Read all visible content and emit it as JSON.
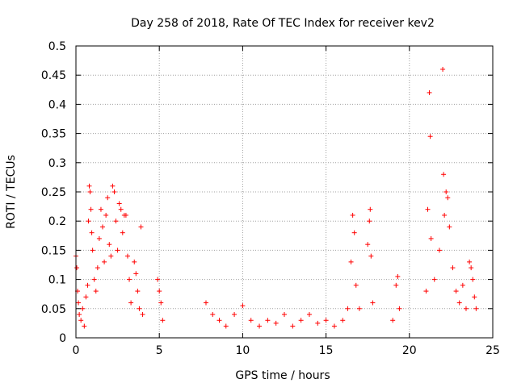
{
  "chart_data": {
    "type": "scatter",
    "title": "Day 258 of 2018, Rate Of TEC Index for receiver kev2",
    "xlabel": "GPS time / hours",
    "ylabel": "ROTI / TECUs",
    "xlim": [
      0,
      25
    ],
    "ylim": [
      0,
      0.5
    ],
    "x_ticks": [
      0,
      5,
      10,
      15,
      20,
      25
    ],
    "y_ticks": [
      0,
      0.05,
      0.1,
      0.15,
      0.2,
      0.25,
      0.3,
      0.35,
      0.4,
      0.45,
      0.5
    ],
    "x_tick_labels": [
      "0",
      "5",
      "10",
      "15",
      "20",
      "25"
    ],
    "y_tick_labels": [
      "0",
      "0.05",
      "0.1",
      "0.15",
      "0.2",
      "0.25",
      "0.3",
      "0.35",
      "0.4",
      "0.45",
      "0.5"
    ],
    "grid": true,
    "marker": "+",
    "color": "#ff0000",
    "series": [
      {
        "name": "ROTI",
        "points": [
          [
            0.0,
            0.14
          ],
          [
            0.05,
            0.12
          ],
          [
            0.1,
            0.08
          ],
          [
            0.15,
            0.06
          ],
          [
            0.2,
            0.04
          ],
          [
            0.3,
            0.03
          ],
          [
            0.4,
            0.05
          ],
          [
            0.5,
            0.02
          ],
          [
            0.6,
            0.07
          ],
          [
            0.7,
            0.09
          ],
          [
            0.75,
            0.2
          ],
          [
            0.8,
            0.26
          ],
          [
            0.85,
            0.25
          ],
          [
            0.9,
            0.22
          ],
          [
            0.95,
            0.18
          ],
          [
            1.0,
            0.15
          ],
          [
            1.1,
            0.1
          ],
          [
            1.2,
            0.08
          ],
          [
            1.3,
            0.12
          ],
          [
            1.4,
            0.17
          ],
          [
            1.5,
            0.22
          ],
          [
            1.6,
            0.19
          ],
          [
            1.7,
            0.13
          ],
          [
            1.8,
            0.21
          ],
          [
            1.9,
            0.24
          ],
          [
            2.0,
            0.16
          ],
          [
            2.1,
            0.14
          ],
          [
            2.2,
            0.26
          ],
          [
            2.3,
            0.25
          ],
          [
            2.4,
            0.2
          ],
          [
            2.5,
            0.15
          ],
          [
            2.6,
            0.23
          ],
          [
            2.7,
            0.22
          ],
          [
            2.8,
            0.18
          ],
          [
            2.9,
            0.21
          ],
          [
            3.0,
            0.21
          ],
          [
            3.1,
            0.14
          ],
          [
            3.2,
            0.1
          ],
          [
            3.3,
            0.06
          ],
          [
            3.5,
            0.13
          ],
          [
            3.6,
            0.11
          ],
          [
            3.7,
            0.08
          ],
          [
            3.8,
            0.05
          ],
          [
            3.9,
            0.19
          ],
          [
            4.0,
            0.04
          ],
          [
            4.9,
            0.1
          ],
          [
            5.0,
            0.08
          ],
          [
            5.1,
            0.06
          ],
          [
            5.2,
            0.03
          ],
          [
            7.8,
            0.06
          ],
          [
            8.2,
            0.04
          ],
          [
            8.6,
            0.03
          ],
          [
            9.0,
            0.02
          ],
          [
            9.5,
            0.04
          ],
          [
            10.0,
            0.055
          ],
          [
            10.5,
            0.03
          ],
          [
            11.0,
            0.02
          ],
          [
            11.5,
            0.03
          ],
          [
            12.0,
            0.025
          ],
          [
            12.5,
            0.04
          ],
          [
            13.0,
            0.02
          ],
          [
            13.5,
            0.03
          ],
          [
            14.0,
            0.04
          ],
          [
            14.5,
            0.025
          ],
          [
            15.0,
            0.03
          ],
          [
            15.5,
            0.02
          ],
          [
            16.0,
            0.03
          ],
          [
            16.3,
            0.05
          ],
          [
            16.5,
            0.13
          ],
          [
            16.6,
            0.21
          ],
          [
            16.7,
            0.18
          ],
          [
            16.8,
            0.09
          ],
          [
            17.0,
            0.05
          ],
          [
            17.5,
            0.16
          ],
          [
            17.6,
            0.2
          ],
          [
            17.65,
            0.22
          ],
          [
            17.7,
            0.14
          ],
          [
            17.8,
            0.06
          ],
          [
            19.0,
            0.03
          ],
          [
            19.2,
            0.09
          ],
          [
            19.3,
            0.105
          ],
          [
            19.4,
            0.05
          ],
          [
            21.0,
            0.08
          ],
          [
            21.1,
            0.22
          ],
          [
            21.2,
            0.42
          ],
          [
            21.25,
            0.345
          ],
          [
            21.3,
            0.17
          ],
          [
            21.5,
            0.1
          ],
          [
            21.8,
            0.15
          ],
          [
            22.0,
            0.46
          ],
          [
            22.05,
            0.28
          ],
          [
            22.1,
            0.21
          ],
          [
            22.2,
            0.25
          ],
          [
            22.3,
            0.24
          ],
          [
            22.4,
            0.19
          ],
          [
            22.6,
            0.12
          ],
          [
            22.8,
            0.08
          ],
          [
            23.0,
            0.06
          ],
          [
            23.2,
            0.09
          ],
          [
            23.4,
            0.05
          ],
          [
            23.6,
            0.13
          ],
          [
            23.7,
            0.12
          ],
          [
            23.8,
            0.1
          ],
          [
            23.9,
            0.07
          ],
          [
            24.0,
            0.05
          ]
        ]
      }
    ]
  }
}
